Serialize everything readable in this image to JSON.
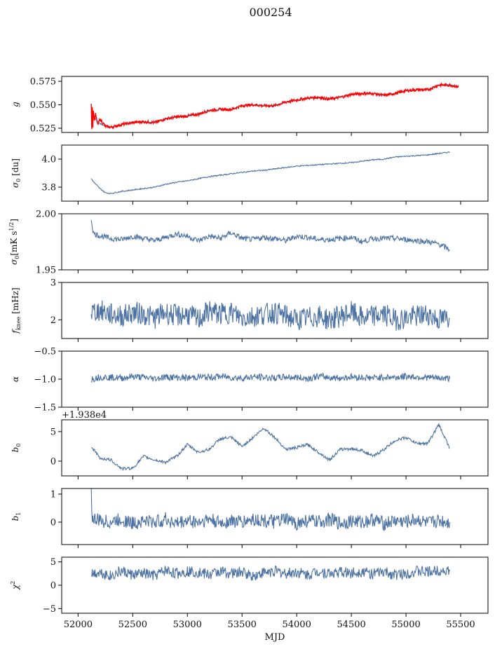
{
  "figure": {
    "title": "000254"
  },
  "colors": {
    "series": "#4c72a3",
    "overlay": "#ff0000",
    "axes": "#000000"
  },
  "chart_data": [
    {
      "type": "line",
      "ylabel": "g",
      "xlim": [
        51850,
        55750
      ],
      "ylim": [
        0.5205,
        0.5802
      ],
      "yticks": [
        0.525,
        0.55,
        0.575
      ],
      "yticklabels": [
        "0.525",
        "0.550",
        "0.575"
      ],
      "series": [
        {
          "x": [
            52120,
            52140,
            52160,
            52200,
            52250,
            52300,
            52400,
            52500,
            52600,
            52700,
            52800,
            52900,
            53000,
            53100,
            53200,
            53300,
            53400,
            53500,
            53600,
            53700,
            53800,
            53900,
            54000,
            54100,
            54200,
            54300,
            54400,
            54500,
            54600,
            54700,
            54800,
            54900,
            55000,
            55100,
            55200,
            55300,
            55400,
            55480
          ],
          "y": [
            0.549,
            0.54,
            0.535,
            0.53,
            0.527,
            0.526,
            0.529,
            0.531,
            0.532,
            0.531,
            0.535,
            0.537,
            0.538,
            0.54,
            0.544,
            0.545,
            0.545,
            0.549,
            0.55,
            0.549,
            0.549,
            0.553,
            0.555,
            0.557,
            0.558,
            0.556,
            0.558,
            0.561,
            0.562,
            0.562,
            0.56,
            0.562,
            0.565,
            0.566,
            0.566,
            0.571,
            0.571,
            0.569
          ]
        },
        {
          "x": [
            52120,
            52125,
            52130,
            52135,
            52140,
            52150,
            52160,
            52180,
            52200,
            52250,
            52300,
            52400,
            52500,
            52600,
            52700,
            52800,
            52900,
            53000,
            53100,
            53200,
            53300,
            53400,
            53500,
            53600,
            53700,
            53800,
            53900,
            54000,
            54100,
            54200,
            54300,
            54400,
            54500,
            54600,
            54700,
            54800,
            54900,
            55000,
            55100,
            55200,
            55300,
            55400,
            55480
          ],
          "y": [
            0.552,
            0.524,
            0.548,
            0.527,
            0.545,
            0.532,
            0.54,
            0.528,
            0.535,
            0.527,
            0.526,
            0.529,
            0.531,
            0.532,
            0.531,
            0.535,
            0.537,
            0.538,
            0.54,
            0.544,
            0.545,
            0.545,
            0.549,
            0.55,
            0.549,
            0.549,
            0.553,
            0.555,
            0.557,
            0.558,
            0.556,
            0.558,
            0.561,
            0.562,
            0.562,
            0.56,
            0.562,
            0.565,
            0.566,
            0.566,
            0.571,
            0.571,
            0.569
          ]
        }
      ]
    },
    {
      "type": "line",
      "ylabel": "σ0 [du]",
      "xlim": [
        51850,
        55750
      ],
      "ylim": [
        3.7,
        4.1
      ],
      "yticks": [
        3.8,
        4.0
      ],
      "yticklabels": [
        "3.8",
        "4.0"
      ],
      "series": [
        {
          "x": [
            52120,
            52150,
            52200,
            52250,
            52300,
            52400,
            52500,
            52600,
            52700,
            52800,
            52900,
            53000,
            53100,
            53200,
            53300,
            53400,
            53500,
            53600,
            53700,
            53800,
            53900,
            54000,
            54100,
            54200,
            54300,
            54400,
            54500,
            54600,
            54700,
            54800,
            54900,
            55000,
            55100,
            55200,
            55300,
            55400
          ],
          "y": [
            3.86,
            3.83,
            3.79,
            3.76,
            3.755,
            3.77,
            3.78,
            3.79,
            3.8,
            3.82,
            3.835,
            3.845,
            3.86,
            3.875,
            3.885,
            3.895,
            3.905,
            3.915,
            3.92,
            3.93,
            3.94,
            3.95,
            3.955,
            3.96,
            3.965,
            3.97,
            3.975,
            3.985,
            3.995,
            4.0,
            4.015,
            4.02,
            4.025,
            4.03,
            4.04,
            4.05
          ]
        }
      ]
    },
    {
      "type": "line",
      "ylabel": "σ0[mK s^1/2]",
      "xlim": [
        51850,
        55750
      ],
      "ylim": [
        1.95,
        2.0
      ],
      "yticks": [
        1.95,
        2.0
      ],
      "yticklabels": [
        "1.95",
        "2.00"
      ],
      "series": [
        {
          "x": [
            52120,
            52140,
            52180,
            52250,
            52300,
            52400,
            52500,
            52600,
            52700,
            52800,
            52900,
            53000,
            53100,
            53200,
            53300,
            53400,
            53500,
            53600,
            53700,
            53800,
            53900,
            54000,
            54100,
            54200,
            54300,
            54400,
            54500,
            54600,
            54700,
            54800,
            54900,
            55000,
            55100,
            55200,
            55300,
            55400
          ],
          "y": [
            1.9955,
            1.9825,
            1.981,
            1.979,
            1.978,
            1.977,
            1.98,
            1.978,
            1.976,
            1.979,
            1.982,
            1.98,
            1.976,
            1.98,
            1.978,
            1.983,
            1.978,
            1.977,
            1.979,
            1.978,
            1.976,
            1.98,
            1.979,
            1.977,
            1.977,
            1.978,
            1.979,
            1.975,
            1.978,
            1.978,
            1.978,
            1.977,
            1.976,
            1.975,
            1.973,
            1.968
          ]
        }
      ]
    },
    {
      "type": "line",
      "ylabel": "f_knee [mHz]",
      "xlim": [
        51850,
        55750
      ],
      "ylim": [
        1.5,
        3.0
      ],
      "yticks": [
        2,
        3
      ],
      "yticklabels": [
        "2",
        "3"
      ],
      "series": [
        {
          "x": [
            52120,
            52200,
            52300,
            52400,
            52500,
            52600,
            52700,
            52800,
            52900,
            53000,
            53100,
            53200,
            53300,
            53400,
            53500,
            53600,
            53700,
            53800,
            53900,
            54000,
            54100,
            54200,
            54300,
            54400,
            54500,
            54600,
            54700,
            54800,
            54900,
            55000,
            55100,
            55200,
            55300,
            55400
          ],
          "y": [
            2.2,
            2.25,
            2.15,
            2.1,
            2.2,
            2.15,
            2.05,
            2.2,
            2.1,
            2.15,
            2.0,
            2.25,
            2.15,
            2.2,
            2.05,
            2.1,
            2.15,
            2.2,
            2.1,
            2.0,
            2.05,
            2.1,
            2.0,
            2.1,
            2.2,
            2.05,
            2.1,
            2.15,
            2.0,
            2.05,
            2.1,
            2.15,
            2.0,
            2.05
          ]
        }
      ]
    },
    {
      "type": "line",
      "ylabel": "α",
      "xlim": [
        51850,
        55750
      ],
      "ylim": [
        -1.5,
        -0.5
      ],
      "yticks": [
        -1.5,
        -1.0,
        -0.5
      ],
      "yticklabels": [
        "−1.5",
        "−1.0",
        "−0.5"
      ],
      "series": [
        {
          "x": [
            52120,
            52200,
            52300,
            52400,
            52500,
            52600,
            52700,
            52800,
            52900,
            53000,
            53100,
            53200,
            53300,
            53400,
            53500,
            53600,
            53700,
            53800,
            53900,
            54000,
            54100,
            54200,
            54300,
            54400,
            54500,
            54600,
            54700,
            54800,
            54900,
            55000,
            55100,
            55200,
            55300,
            55400
          ],
          "y": [
            -1.0,
            -0.96,
            -0.97,
            -0.98,
            -0.95,
            -0.97,
            -0.99,
            -0.96,
            -0.97,
            -0.98,
            -0.96,
            -0.97,
            -0.95,
            -0.97,
            -0.98,
            -0.96,
            -0.97,
            -0.98,
            -0.96,
            -0.97,
            -0.99,
            -0.95,
            -0.97,
            -0.98,
            -0.96,
            -0.97,
            -0.98,
            -0.96,
            -0.97,
            -0.95,
            -0.96,
            -0.97,
            -0.98,
            -0.99
          ]
        }
      ]
    },
    {
      "type": "line",
      "ylabel": "b0",
      "offset_text": "+1.938e4",
      "xlim": [
        51850,
        55750
      ],
      "ylim": [
        -2.5,
        7
      ],
      "yticks": [
        0,
        5
      ],
      "yticklabels": [
        "0",
        "5"
      ],
      "series": [
        {
          "x": [
            52120,
            52200,
            52300,
            52400,
            52500,
            52600,
            52700,
            52800,
            52900,
            53000,
            53100,
            53200,
            53300,
            53400,
            53500,
            53600,
            53700,
            53800,
            53900,
            54000,
            54100,
            54200,
            54300,
            54400,
            54500,
            54600,
            54700,
            54800,
            54900,
            55000,
            55100,
            55200,
            55300,
            55400
          ],
          "y": [
            2.5,
            0.5,
            0.2,
            -1.3,
            -1.2,
            0.8,
            0.2,
            -0.2,
            0.8,
            2.8,
            1.5,
            2.0,
            3.8,
            4.0,
            2.5,
            4.0,
            5.6,
            4.0,
            2.0,
            2.3,
            2.8,
            1.5,
            0.2,
            2.0,
            2.1,
            1.8,
            0.8,
            2.0,
            3.5,
            4.0,
            3.0,
            3.0,
            6.2,
            2.2
          ]
        }
      ]
    },
    {
      "type": "line",
      "ylabel": "b1",
      "xlim": [
        51850,
        55750
      ],
      "ylim": [
        -0.8,
        1.2
      ],
      "yticks": [
        0,
        1
      ],
      "yticklabels": [
        "0",
        "1"
      ],
      "series": [
        {
          "x": [
            52120,
            52130,
            52200,
            52300,
            52400,
            52500,
            52600,
            52700,
            52800,
            52900,
            53000,
            53100,
            53200,
            53300,
            53400,
            53500,
            53600,
            53700,
            53800,
            53900,
            54000,
            54100,
            54200,
            54300,
            54400,
            54500,
            54600,
            54700,
            54800,
            54900,
            55000,
            55100,
            55200,
            55300,
            55400
          ],
          "y": [
            1.1,
            0.1,
            0.05,
            0.0,
            0.1,
            -0.05,
            0.05,
            0.0,
            0.1,
            -0.05,
            0.05,
            0.0,
            0.1,
            -0.05,
            0.05,
            0.0,
            0.1,
            0.05,
            0.0,
            0.1,
            -0.05,
            0.05,
            0.0,
            0.1,
            -0.05,
            0.05,
            0.0,
            0.1,
            -0.05,
            0.05,
            0.0,
            0.1,
            -0.05,
            0.05,
            0.0
          ]
        }
      ]
    },
    {
      "type": "line",
      "ylabel": "χ2",
      "xlabel": "MJD",
      "xlim": [
        51850,
        55750
      ],
      "ylim": [
        -6,
        6
      ],
      "yticks": [
        -5,
        0,
        5
      ],
      "yticklabels": [
        "−5",
        "0",
        "5"
      ],
      "xticks": [
        52000,
        52500,
        53000,
        53500,
        54000,
        54500,
        55000,
        55500
      ],
      "xticklabels": [
        "52000",
        "52500",
        "53000",
        "53500",
        "54000",
        "54500",
        "55000",
        "55500"
      ],
      "series": [
        {
          "x": [
            52120,
            52200,
            52300,
            52400,
            52500,
            52600,
            52700,
            52800,
            52900,
            53000,
            53100,
            53200,
            53300,
            53400,
            53500,
            53600,
            53700,
            53800,
            53900,
            54000,
            54100,
            54200,
            54300,
            54400,
            54500,
            54600,
            54700,
            54800,
            54900,
            55000,
            55100,
            55200,
            55300,
            55400
          ],
          "y": [
            2.5,
            2.8,
            2.0,
            3.0,
            2.2,
            2.5,
            2.0,
            3.2,
            2.5,
            3.0,
            2.8,
            2.2,
            3.0,
            2.5,
            2.8,
            2.0,
            2.7,
            3.0,
            2.5,
            2.8,
            2.2,
            3.0,
            2.5,
            2.8,
            2.6,
            3.0,
            2.4,
            2.8,
            2.2,
            2.5,
            3.0,
            2.8,
            3.2,
            3.0
          ]
        }
      ]
    }
  ]
}
